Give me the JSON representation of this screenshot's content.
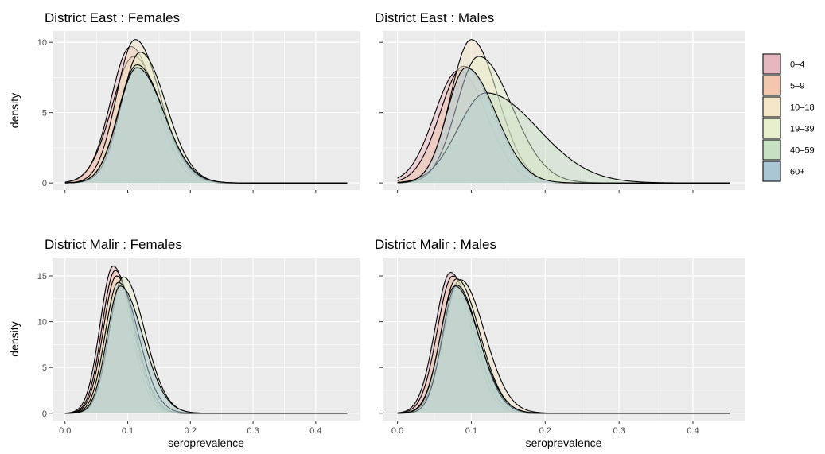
{
  "chart_data": {
    "type": "area",
    "subtype": "faceted density",
    "xlabel": "seroprevalence",
    "ylabel": "density",
    "x_ticks": [
      0.0,
      0.1,
      0.2,
      0.3,
      0.4
    ],
    "x_tick_labels": [
      "0.0",
      "0.1",
      "0.2",
      "0.3",
      "0.4"
    ],
    "xlim": [
      -0.02,
      0.47
    ],
    "grid": true,
    "legend_position": "right",
    "groups": [
      {
        "name": "0–4",
        "color": "#e7b7bf"
      },
      {
        "name": "5–9",
        "color": "#f2c7ae"
      },
      {
        "name": "10–18",
        "color": "#f3e5c6"
      },
      {
        "name": "19–39",
        "color": "#e8efcb"
      },
      {
        "name": "40–59",
        "color": "#c7dfc3"
      },
      {
        "name": "60+",
        "color": "#aac5d6"
      }
    ],
    "panels": [
      {
        "title": "District East : Females",
        "ylim": [
          -0.5,
          10.8
        ],
        "y_ticks": [
          0,
          5,
          10
        ],
        "y_tick_labels": [
          "0",
          "5",
          "10"
        ],
        "show_y_labels": true,
        "show_x_labels": false,
        "series": [
          {
            "group": "0–4",
            "mode": 0.105,
            "peak": 9.7,
            "sl": 0.032,
            "sr": 0.04
          },
          {
            "group": "5–9",
            "mode": 0.11,
            "peak": 9.0,
            "sl": 0.035,
            "sr": 0.042
          },
          {
            "group": "10–18",
            "mode": 0.112,
            "peak": 10.2,
            "sl": 0.03,
            "sr": 0.04
          },
          {
            "group": "19–39",
            "mode": 0.12,
            "peak": 9.3,
            "sl": 0.03,
            "sr": 0.041
          },
          {
            "group": "40–59",
            "mode": 0.115,
            "peak": 8.4,
            "sl": 0.03,
            "sr": 0.042
          },
          {
            "group": "60+",
            "mode": 0.115,
            "peak": 8.2,
            "sl": 0.03,
            "sr": 0.043
          }
        ]
      },
      {
        "title": "District East : Males",
        "ylim": [
          -0.5,
          10.8
        ],
        "y_ticks": [
          0,
          5,
          10
        ],
        "y_tick_labels": [
          "0",
          "5",
          "10"
        ],
        "show_y_labels": false,
        "show_x_labels": false,
        "series": [
          {
            "group": "0–4",
            "mode": 0.083,
            "peak": 8.0,
            "sl": 0.033,
            "sr": 0.038
          },
          {
            "group": "5–9",
            "mode": 0.09,
            "peak": 8.3,
            "sl": 0.032,
            "sr": 0.04
          },
          {
            "group": "10–18",
            "mode": 0.1,
            "peak": 10.2,
            "sl": 0.028,
            "sr": 0.036
          },
          {
            "group": "19–39",
            "mode": 0.11,
            "peak": 9.0,
            "sl": 0.03,
            "sr": 0.045
          },
          {
            "group": "40–59",
            "mode": 0.12,
            "peak": 6.4,
            "sl": 0.038,
            "sr": 0.07
          },
          {
            "group": "60+",
            "mode": 0.093,
            "peak": 8.2,
            "sl": 0.026,
            "sr": 0.04
          }
        ]
      },
      {
        "title": "District Malir : Females",
        "ylim": [
          -0.8,
          17.0
        ],
        "y_ticks": [
          0,
          5,
          10,
          15
        ],
        "y_tick_labels": [
          "0",
          "5",
          "10",
          "15"
        ],
        "show_y_labels": true,
        "show_x_labels": true,
        "series": [
          {
            "group": "0–4",
            "mode": 0.077,
            "peak": 16.1,
            "sl": 0.021,
            "sr": 0.028
          },
          {
            "group": "5–9",
            "mode": 0.08,
            "peak": 15.6,
            "sl": 0.021,
            "sr": 0.029
          },
          {
            "group": "10–18",
            "mode": 0.082,
            "peak": 15.0,
            "sl": 0.021,
            "sr": 0.03
          },
          {
            "group": "19–39",
            "mode": 0.093,
            "peak": 14.9,
            "sl": 0.022,
            "sr": 0.034
          },
          {
            "group": "40–59",
            "mode": 0.085,
            "peak": 14.3,
            "sl": 0.021,
            "sr": 0.032
          },
          {
            "group": "60+",
            "mode": 0.088,
            "peak": 13.9,
            "sl": 0.021,
            "sr": 0.036
          }
        ]
      },
      {
        "title": "District Malir : Males",
        "ylim": [
          -0.8,
          17.0
        ],
        "y_ticks": [
          0,
          5,
          10,
          15
        ],
        "y_tick_labels": [
          "0",
          "5",
          "10",
          "15"
        ],
        "show_y_labels": false,
        "show_x_labels": true,
        "series": [
          {
            "group": "0–4",
            "mode": 0.072,
            "peak": 15.4,
            "sl": 0.021,
            "sr": 0.028
          },
          {
            "group": "5–9",
            "mode": 0.075,
            "peak": 15.0,
            "sl": 0.021,
            "sr": 0.029
          },
          {
            "group": "10–18",
            "mode": 0.085,
            "peak": 14.6,
            "sl": 0.022,
            "sr": 0.033
          },
          {
            "group": "19–39",
            "mode": 0.08,
            "peak": 14.7,
            "sl": 0.021,
            "sr": 0.031
          },
          {
            "group": "40–59",
            "mode": 0.08,
            "peak": 14.0,
            "sl": 0.019,
            "sr": 0.03
          },
          {
            "group": "60+",
            "mode": 0.078,
            "peak": 13.9,
            "sl": 0.02,
            "sr": 0.032
          }
        ]
      }
    ]
  }
}
